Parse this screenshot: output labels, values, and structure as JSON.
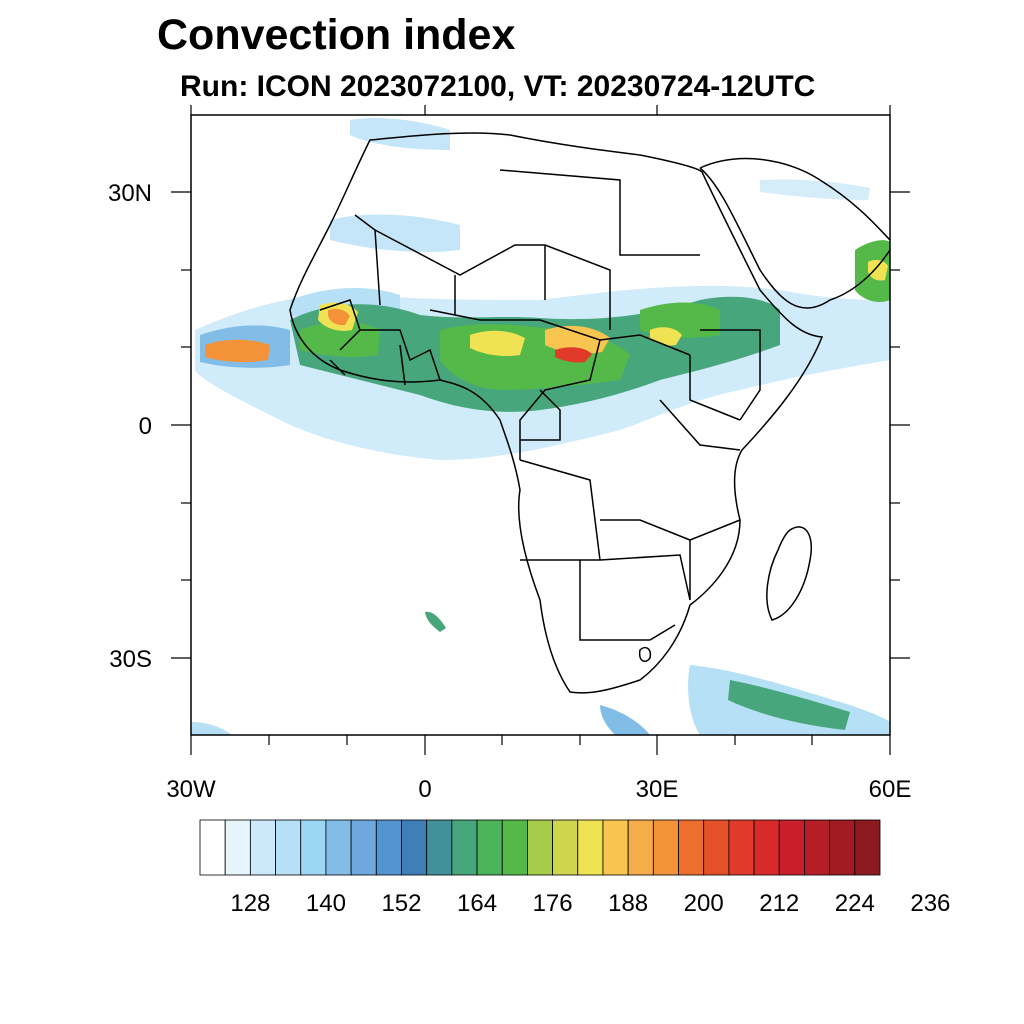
{
  "title": "Convection index",
  "subtitle": "Run: ICON 2023072100,  VT: 20230724-12UTC",
  "map": {
    "region": "Africa",
    "lon_range": [
      -30,
      60
    ],
    "lat_range": [
      -40,
      40
    ],
    "x_ticks": [
      {
        "label": "30W",
        "value": -30
      },
      {
        "label": "0",
        "value": 0
      },
      {
        "label": "30E",
        "value": 30
      },
      {
        "label": "60E",
        "value": 60
      }
    ],
    "y_ticks": [
      {
        "label": "30N",
        "value": 30
      },
      {
        "label": "0",
        "value": 0
      },
      {
        "label": "30S",
        "value": -30
      }
    ]
  },
  "colorbar": {
    "colors": [
      "#ffffff",
      "#e6f4fc",
      "#cbe9f8",
      "#b5e0f6",
      "#9bd6f4",
      "#82bde8",
      "#6ea8de",
      "#5393cf",
      "#3f7fb8",
      "#41919a",
      "#48a67c",
      "#4cb45a",
      "#55b94a",
      "#a6cc4a",
      "#d0d550",
      "#efe354",
      "#f8c650",
      "#f6ac48",
      "#f39238",
      "#ed6e2e",
      "#e65029",
      "#e13a2b",
      "#d82a2b",
      "#c91f2a",
      "#b51d27",
      "#a11b23",
      "#8c1a1f"
    ],
    "labels": [
      "128",
      "140",
      "152",
      "164",
      "176",
      "188",
      "200",
      "212",
      "224",
      "236"
    ]
  }
}
